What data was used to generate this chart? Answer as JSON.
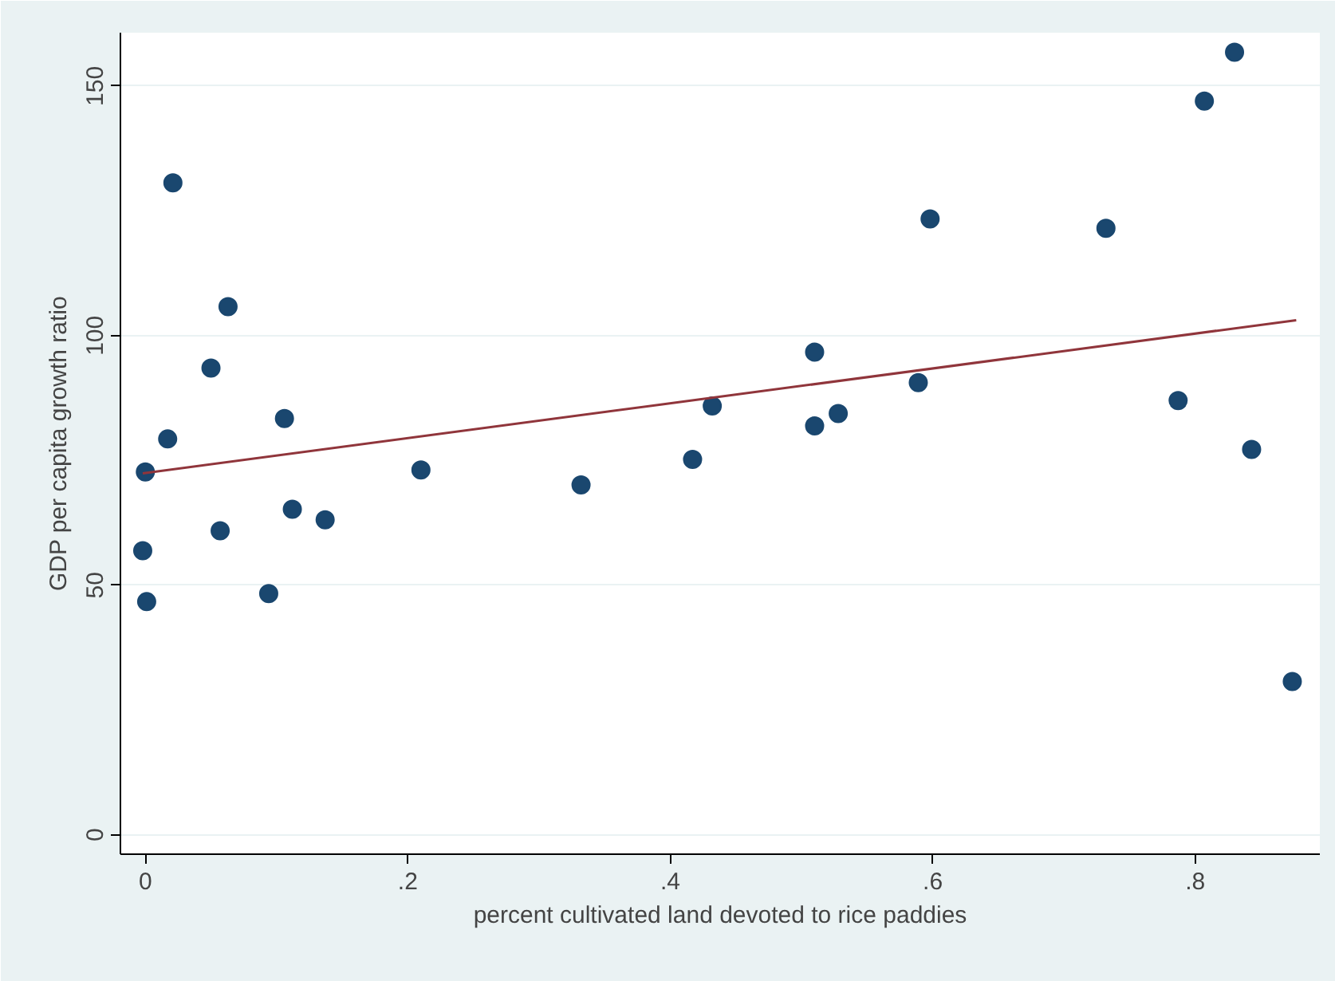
{
  "chart_data": {
    "type": "scatter",
    "xlabel": "percent cultivated land devoted to rice paddies",
    "ylabel": "GDP per capita growth ratio",
    "xlim": [
      -0.019,
      0.895
    ],
    "ylim": [
      -3.9,
      160.7
    ],
    "xticks": [
      0,
      {
        "value": 0.2,
        "label": ".2"
      },
      {
        "value": 0.4,
        "label": ".4"
      },
      {
        "value": 0.6,
        "label": ".6"
      },
      {
        "value": 0.8,
        "label": ".8"
      }
    ],
    "yticks": [
      0,
      50,
      100,
      150
    ],
    "grid": "y",
    "series": [
      {
        "marker": "circle",
        "color": "#1a476f",
        "x": [
          0.021,
          0.063,
          0.05,
          0.106,
          0.017,
          0.0,
          0.21,
          0.112,
          0.137,
          0.057,
          -0.002,
          0.094,
          0.001,
          0.332,
          0.417,
          0.432,
          0.51,
          0.51,
          0.528,
          0.589,
          0.598,
          0.83,
          0.807,
          0.732,
          0.787,
          0.843,
          0.874
        ],
        "values": [
          130.6,
          105.8,
          93.5,
          83.4,
          79.3,
          72.7,
          73.1,
          65.2,
          63.1,
          60.9,
          56.9,
          48.3,
          46.7,
          70.1,
          75.2,
          85.9,
          96.7,
          81.9,
          84.4,
          90.6,
          123.4,
          156.8,
          147.0,
          121.5,
          87.0,
          77.2,
          30.7
        ]
      },
      {
        "type": "line",
        "color": "#90353b",
        "x": [
          -0.002,
          0.877
        ],
        "values": [
          72.4,
          103.1
        ]
      }
    ]
  }
}
